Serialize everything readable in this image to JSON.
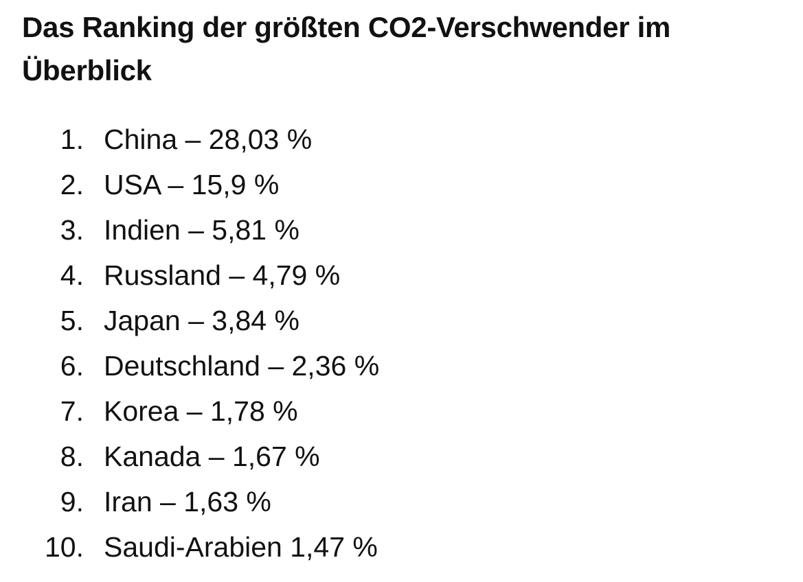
{
  "title": "Das Ranking der größten CO2-Verschwender im Überblick",
  "items": [
    {
      "number": "1.",
      "text": "China – 28,03 %"
    },
    {
      "number": "2.",
      "text": "USA – 15,9 %"
    },
    {
      "number": "3.",
      "text": "Indien – 5,81 %"
    },
    {
      "number": "4.",
      "text": "Russland – 4,79 %"
    },
    {
      "number": "5.",
      "text": "Japan – 3,84 %"
    },
    {
      "number": "6.",
      "text": "Deutschland – 2,36 %"
    },
    {
      "number": "7.",
      "text": "Korea – 1,78 %"
    },
    {
      "number": "8.",
      "text": "Kanada – 1,67 %"
    },
    {
      "number": "9.",
      "text": "Iran – 1,63 %"
    },
    {
      "number": "10.",
      "text": "Saudi-Arabien 1,47 %"
    }
  ]
}
